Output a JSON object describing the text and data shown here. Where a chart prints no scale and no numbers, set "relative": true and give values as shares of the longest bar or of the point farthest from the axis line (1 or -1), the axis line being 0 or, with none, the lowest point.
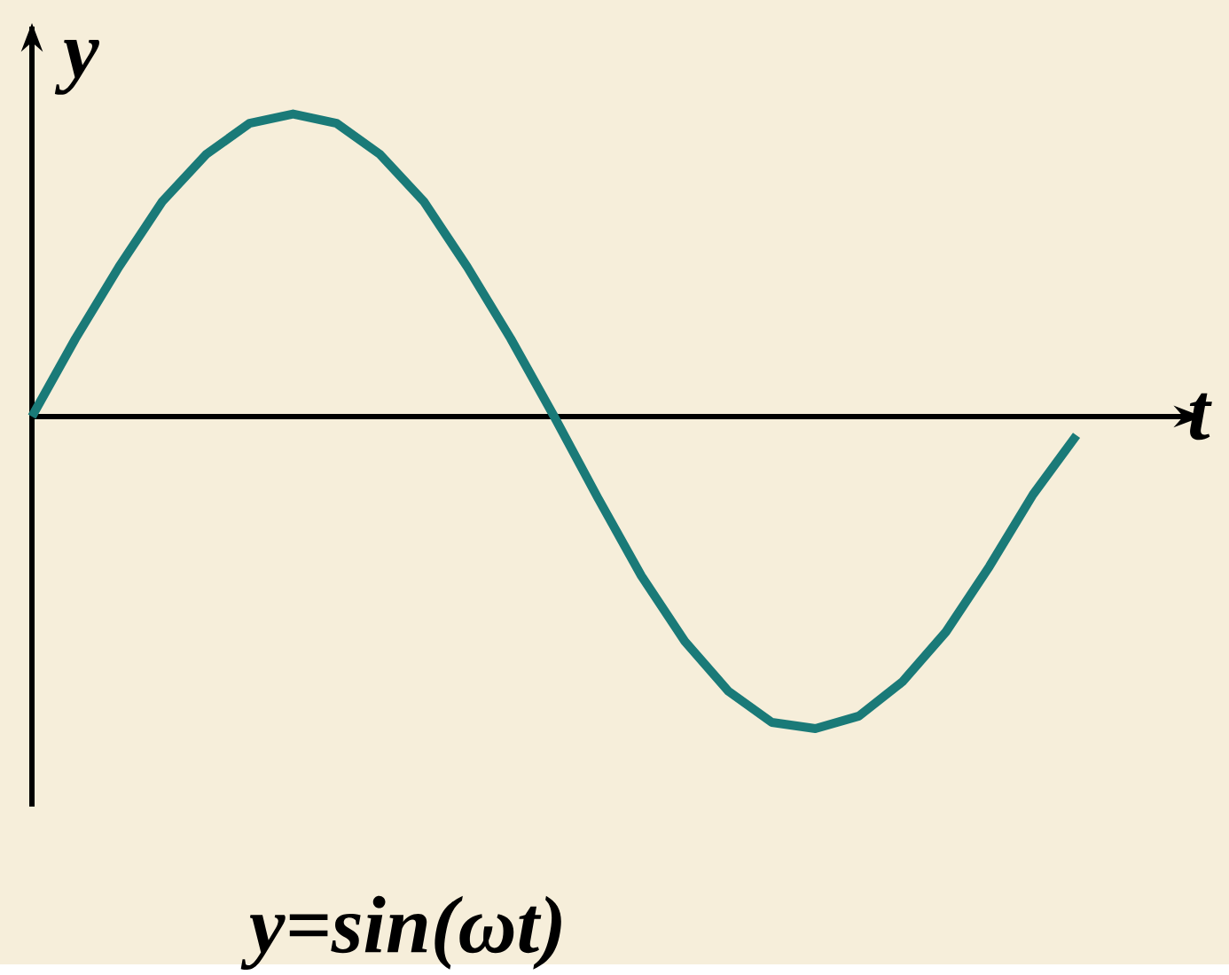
{
  "chart_data": {
    "type": "line",
    "title": "y=sin(ωt)",
    "xlabel": "t",
    "ylabel": "y",
    "relative": true,
    "categories": [
      null,
      null,
      null,
      null,
      null,
      null,
      null,
      null,
      null,
      null,
      null,
      null,
      null,
      null,
      null,
      null,
      null,
      null,
      null,
      null,
      null,
      null,
      null,
      null,
      null
    ],
    "series": [
      {
        "color": "#1a7a78",
        "values": [
          0,
          0.25,
          0.48,
          0.69,
          0.84,
          0.94,
          0.97,
          0.94,
          0.84,
          0.69,
          0.48,
          0.25,
          0,
          -0.26,
          -0.51,
          -0.72,
          -0.88,
          -0.98,
          -1.0,
          -0.96,
          -0.85,
          -0.69,
          -0.48,
          -0.25,
          -0.06
        ]
      }
    ]
  }
}
